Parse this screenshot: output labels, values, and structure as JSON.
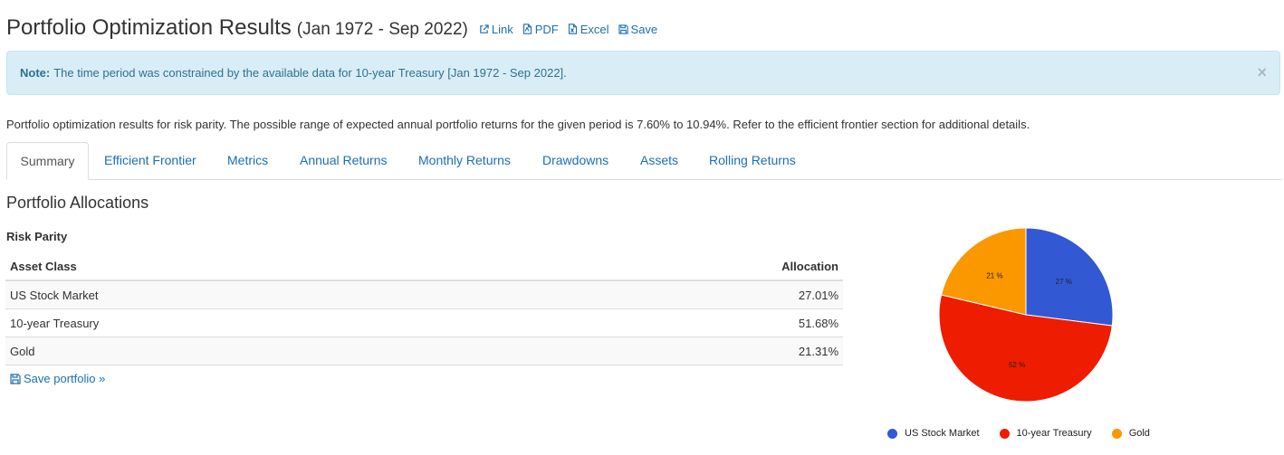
{
  "header": {
    "title": "Portfolio Optimization Results",
    "range": "(Jan 1972 - Sep 2022)",
    "links": [
      {
        "label": "Link",
        "icon": "external-link-icon"
      },
      {
        "label": "PDF",
        "icon": "pdf-file-icon"
      },
      {
        "label": "Excel",
        "icon": "excel-file-icon"
      },
      {
        "label": "Save",
        "icon": "floppy-disk-icon"
      }
    ]
  },
  "alert": {
    "label": "Note:",
    "text": "The time period was constrained by the available data for 10-year Treasury [Jan 1972 - Sep 2022].",
    "close": "×"
  },
  "intro": "Portfolio optimization results for risk parity. The possible range of expected annual portfolio returns for the given period is 7.60% to 10.94%. Refer to the efficient frontier section for additional details.",
  "tabs": [
    {
      "label": "Summary",
      "active": true
    },
    {
      "label": "Efficient Frontier"
    },
    {
      "label": "Metrics"
    },
    {
      "label": "Annual Returns"
    },
    {
      "label": "Monthly Returns"
    },
    {
      "label": "Drawdowns"
    },
    {
      "label": "Assets"
    },
    {
      "label": "Rolling Returns"
    }
  ],
  "section_title": "Portfolio Allocations",
  "portfolio_name": "Risk Parity",
  "table": {
    "headers": [
      "Asset Class",
      "Allocation"
    ],
    "rows": [
      [
        "US Stock Market",
        "27.01%"
      ],
      [
        "10-year Treasury",
        "51.68%"
      ],
      [
        "Gold",
        "21.31%"
      ]
    ]
  },
  "save_portfolio": "Save portfolio »",
  "colors": {
    "link": "#1a6fb5",
    "alert_bg": "#d9edf7",
    "us_stock": "#3358d4",
    "treasury": "#ee1c00",
    "gold": "#fb9800"
  },
  "chart_data": {
    "type": "pie",
    "categories": [
      "US Stock Market",
      "10-year Treasury",
      "Gold"
    ],
    "values": [
      27.01,
      51.68,
      21.31
    ],
    "labels": [
      "27 %",
      "52 %",
      "21 %"
    ],
    "colors": [
      "#3358d4",
      "#ee1c00",
      "#fb9800"
    ],
    "legend": "bottom"
  }
}
